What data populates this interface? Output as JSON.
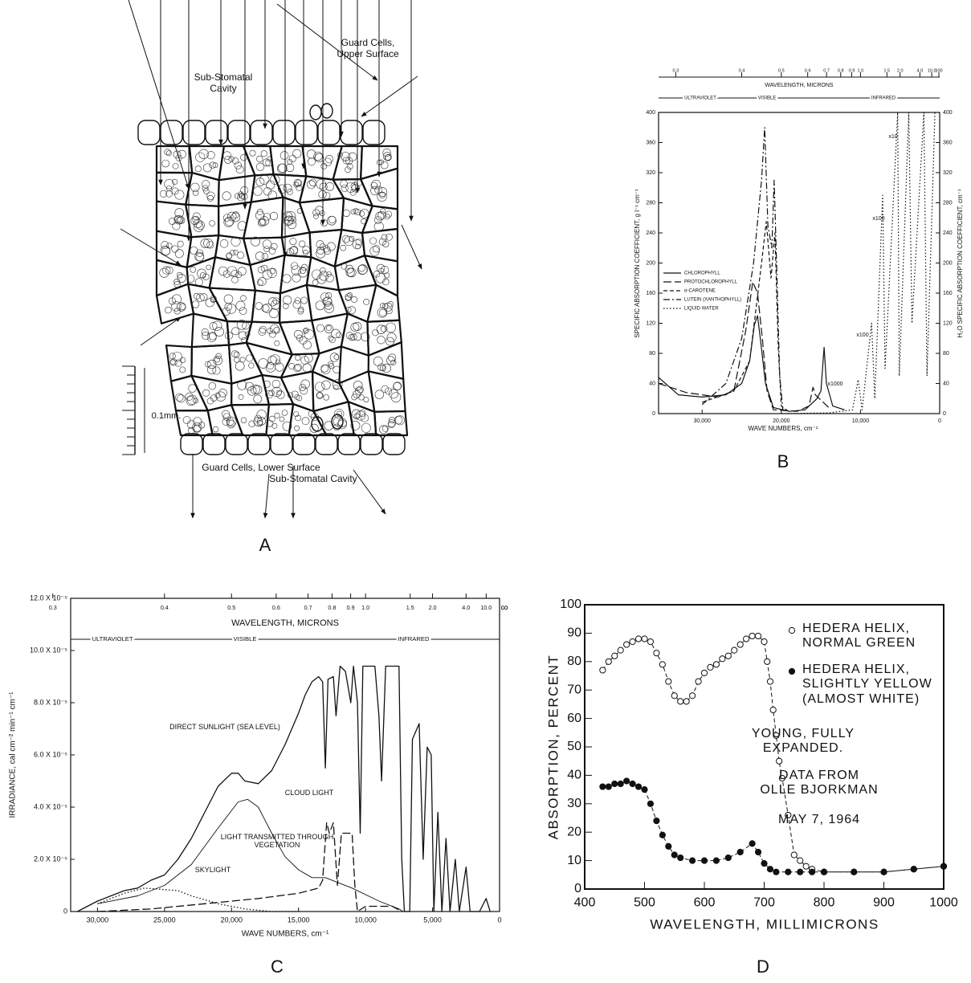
{
  "diagram": {
    "panel": "A",
    "labels": [
      "Sub-Stomatal Cavity",
      "Guard Cells, Upper Surface",
      "0.1mm.",
      "Guard Cells, Lower Surface",
      "Sub-Stomatal Cavity"
    ]
  },
  "chart_data": [
    {
      "type": "line",
      "panel": "B",
      "x_label": "WAVE NUMBERS, cm⁻¹",
      "y_label": "SPECIFIC ABSORPTION COEFFICIENT, g l⁻¹ cm⁻¹",
      "y2_label": "H₂O SPECIFIC ABSORPTION COEFFICIENT, cm⁻¹",
      "x2_label": "WAVELENGTH, MICRONS",
      "x2ticks": [
        0.3,
        0.4,
        0.5,
        0.6,
        0.7,
        0.8,
        0.9,
        {
          "value": 1,
          "label": "1.0"
        },
        1.5,
        {
          "value": 2,
          "label": "2.0"
        },
        {
          "value": 4,
          "label": "4.0"
        },
        {
          "value": 10,
          "label": "10.0"
        },
        100
      ],
      "regions": [
        "ULTRAVIOLET",
        "VISIBLE",
        "INFRARED"
      ],
      "xlim": [
        35500,
        0
      ],
      "xticks": [
        {
          "value": 30000,
          "label": "30,000"
        },
        {
          "value": 20000,
          "label": "20,000"
        },
        {
          "value": 10000,
          "label": "10,000"
        },
        0
      ],
      "ylim": [
        0,
        400
      ],
      "yticks": [
        0,
        40,
        80,
        120,
        160,
        200,
        240,
        280,
        320,
        360,
        400
      ],
      "y2lim": [
        0,
        400
      ],
      "y2ticks": [
        0,
        40,
        80,
        120,
        160,
        200,
        240,
        280,
        320,
        360,
        400
      ],
      "legend": "left",
      "series": [
        {
          "name": "CHLOROPHYLL",
          "color": "#111111",
          "dash": "solid",
          "x": [
            35500,
            33000,
            30000,
            27000,
            25000,
            24000,
            23400,
            23000,
            22600,
            22000,
            21000,
            19000,
            17000,
            15500,
            15000,
            14600,
            14300,
            13500,
            12000
          ],
          "values": [
            48,
            25,
            22,
            25,
            40,
            70,
            118,
            130,
            95,
            40,
            8,
            3,
            5,
            20,
            30,
            88,
            40,
            10,
            5
          ]
        },
        {
          "name": "PROTOCHLOROPHYLL",
          "color": "#111111",
          "dash": "longdash",
          "x": [
            35500,
            32000,
            28000,
            26000,
            24500,
            23600,
            23000,
            22400,
            21800,
            21000,
            18000,
            16500,
            16000,
            15700,
            14000
          ],
          "values": [
            40,
            28,
            22,
            30,
            110,
            175,
            160,
            100,
            30,
            5,
            3,
            10,
            35,
            25,
            8
          ]
        },
        {
          "name": "α-CAROTENE",
          "color": "#111111",
          "dash": "dashed",
          "x": [
            30000,
            26000,
            24000,
            22500,
            21900,
            21300,
            20800,
            20400,
            20000,
            19000
          ],
          "values": [
            15,
            30,
            70,
            200,
            255,
            180,
            240,
            90,
            10,
            2
          ]
        },
        {
          "name": "LUTEIN (XANTHOPHYLL)",
          "color": "#111111",
          "dash": "dashdot",
          "x": [
            30000,
            27000,
            25000,
            23500,
            22500,
            22100,
            21700,
            21200,
            20900,
            20600,
            20200,
            19800
          ],
          "values": [
            12,
            40,
            100,
            200,
            310,
            380,
            250,
            220,
            310,
            200,
            50,
            5
          ]
        },
        {
          "name": "LIQUID WATER",
          "color": "#111111",
          "dash": "dotted",
          "axis": "y2",
          "x": [
            20000,
            14000,
            11000,
            10300,
            9800,
            8600,
            8200,
            7200,
            6900,
            5300,
            5100,
            3900,
            3500,
            2000,
            1600,
            600
          ],
          "values": [
            0,
            1,
            5,
            45,
            5,
            120,
            20,
            290,
            60,
            400,
            50,
            400,
            120,
            400,
            50,
            400
          ]
        }
      ],
      "annotations": [
        "x10",
        "x100",
        "x100",
        "x1000"
      ]
    },
    {
      "type": "line",
      "panel": "C",
      "x_label": "WAVE NUMBERS, cm⁻¹",
      "y_label": "IRRADIANCE, cal cm⁻² min⁻¹ cm⁻¹",
      "x2_label": "WAVELENGTH, MICRONS",
      "x2ticks": [
        0.3,
        0.4,
        0.5,
        0.6,
        0.7,
        0.8,
        0.9,
        {
          "value": 1,
          "label": "1.0"
        },
        1.5,
        {
          "value": 2,
          "label": "2.0"
        },
        {
          "value": 4,
          "label": "4.0"
        },
        {
          "value": 10,
          "label": "10.0"
        }
      ],
      "x2_end": "∞",
      "regions": [
        "ULTRAVIOLET",
        "VISIBLE",
        "INFRARED"
      ],
      "xlim": [
        32000,
        0
      ],
      "xticks": [
        {
          "value": 30000,
          "label": "30,000"
        },
        {
          "value": 25000,
          "label": "25,000"
        },
        {
          "value": 20000,
          "label": "20,000"
        },
        {
          "value": 15000,
          "label": "15,000"
        },
        {
          "value": 10000,
          "label": "10,000"
        },
        {
          "value": 5000,
          "label": "5,000"
        },
        0
      ],
      "ylim": [
        0,
        0.00012
      ],
      "yticks": [
        0,
        {
          "value": 2e-05,
          "label": "2.0 X 10⁻⁵"
        },
        {
          "value": 4e-05,
          "label": "4.0 X 10⁻⁵"
        },
        {
          "value": 6e-05,
          "label": "6.0 X 10⁻⁵"
        },
        {
          "value": 8e-05,
          "label": "8.0 X 10⁻⁵"
        },
        {
          "value": 0.0001,
          "label": "10.0 X 10⁻⁵"
        },
        {
          "value": 0.00012,
          "label": "12.0 X 10⁻⁵"
        }
      ],
      "legend": "inline",
      "series": [
        {
          "name": "DIRECT SUNLIGHT (SEA LEVEL)",
          "color": "#111111",
          "dash": "solid",
          "x": [
            31500,
            30000,
            28000,
            27000,
            26000,
            25000,
            24000,
            23000,
            22000,
            21000,
            20000,
            19500,
            19000,
            18000,
            17000,
            16000,
            15000,
            14500,
            14000,
            13500,
            13200,
            13000,
            12800,
            12400,
            12200,
            11900,
            11500,
            11100,
            10900,
            10600,
            10400,
            10200,
            9300,
            9000,
            8800,
            8500,
            7500,
            7300,
            7100,
            6700,
            6500,
            6000,
            5700,
            5400,
            5100,
            4900,
            4600,
            4300,
            4000,
            3700,
            3300,
            3000,
            2500,
            2200,
            1500,
            1000,
            700
          ],
          "values": [
            0,
            4e-06,
            8e-06,
            9e-06,
            1.2e-05,
            1.4e-05,
            2e-05,
            2.8e-05,
            3.8e-05,
            4.8e-05,
            5.3e-05,
            5.3e-05,
            5e-05,
            4.9e-05,
            5.4e-05,
            6.4e-05,
            7.6e-05,
            8.3e-05,
            8.8e-05,
            9e-05,
            8.8e-05,
            5.5e-05,
            8.9e-05,
            9e-05,
            7.5e-05,
            9.4e-05,
            9.2e-05,
            8e-05,
            9.4e-05,
            8e-05,
            3e-05,
            9.4e-05,
            9.4e-05,
            7.5e-05,
            5e-05,
            9.4e-05,
            9.4e-05,
            2e-05,
            0,
            0,
            6.6e-05,
            7.2e-05,
            2e-05,
            6.3e-05,
            6e-05,
            0,
            3.8e-05,
            0,
            2.8e-05,
            0,
            2e-05,
            0,
            1.7e-05,
            0,
            0,
            5e-06,
            0
          ]
        },
        {
          "name": "CLOUD LIGHT",
          "color": "#111111",
          "dash": "thin",
          "x": [
            30000,
            27000,
            25000,
            23000,
            21000,
            19500,
            18800,
            18000,
            17000,
            16000,
            15000,
            14000,
            13000,
            11000,
            9000,
            7500,
            7200
          ],
          "values": [
            3e-06,
            6e-06,
            1e-05,
            1.8e-05,
            3.2e-05,
            4.2e-05,
            4.3e-05,
            4e-05,
            3e-05,
            2.1e-05,
            1.6e-05,
            1.3e-05,
            1.3e-05,
            9e-06,
            4e-06,
            1e-06,
            0
          ]
        },
        {
          "name": "LIGHT TRANSMITTED THROUGH VEGETATION",
          "color": "#111111",
          "dash": "longdash",
          "x": [
            30000,
            26000,
            22000,
            18000,
            15000,
            13500,
            13200,
            12900,
            12700,
            12400,
            12100,
            11800,
            11000,
            10800,
            10600,
            10000,
            8000,
            7300
          ],
          "values": [
            0,
            1e-06,
            3e-06,
            5e-06,
            7e-06,
            9e-06,
            1.2e-05,
            3.4e-05,
            3e-05,
            3.4e-05,
            1e-05,
            3e-05,
            3e-05,
            1e-05,
            0,
            2e-06,
            2e-06,
            0
          ]
        },
        {
          "name": "SKYLIGHT",
          "color": "#111111",
          "dash": "dotted",
          "x": [
            30000,
            28000,
            26500,
            24000,
            23000,
            21000,
            19000,
            17000,
            15000
          ],
          "values": [
            3e-06,
            7e-06,
            9e-06,
            8e-06,
            6e-06,
            3e-06,
            1e-06,
            0,
            0
          ]
        }
      ]
    },
    {
      "type": "line",
      "panel": "D",
      "x_label": "WAVELENGTH, MILLIMICRONS",
      "y_label": "ABSORPTION, PERCENT",
      "xlim": [
        400,
        1000
      ],
      "xticks": [
        400,
        500,
        600,
        700,
        800,
        900,
        1000
      ],
      "ylim": [
        0,
        100
      ],
      "yticks": [
        0,
        10,
        20,
        30,
        40,
        50,
        60,
        70,
        80,
        90,
        100
      ],
      "legend": "upper right",
      "series": [
        {
          "name": "HEDERA HELIX, NORMAL GREEN",
          "color": "#111111",
          "dash": "dashed",
          "marker": "open",
          "x": [
            430,
            440,
            450,
            460,
            470,
            480,
            490,
            500,
            510,
            520,
            530,
            540,
            550,
            560,
            570,
            580,
            590,
            600,
            610,
            620,
            630,
            640,
            650,
            660,
            670,
            680,
            690,
            700,
            705,
            710,
            715,
            720,
            725,
            730,
            740,
            750,
            760,
            770,
            780,
            800,
            850,
            900,
            950,
            1000
          ],
          "values": [
            77,
            80,
            82,
            84,
            86,
            87,
            88,
            88,
            87,
            83,
            79,
            73,
            68,
            66,
            66,
            68,
            73,
            76,
            78,
            79,
            81,
            82,
            84,
            86,
            88,
            89,
            89,
            87,
            80,
            73,
            63,
            54,
            45,
            39,
            26,
            12,
            10,
            8,
            7,
            6,
            6,
            6,
            7,
            8
          ]
        },
        {
          "name": "HEDERA HELIX, SLIGHTLY YELLOW (ALMOST WHITE)",
          "color": "#111111",
          "dash": "dashed",
          "marker": "filled",
          "x": [
            430,
            440,
            450,
            460,
            470,
            480,
            490,
            500,
            510,
            520,
            530,
            540,
            550,
            560,
            580,
            600,
            620,
            640,
            660,
            680,
            690,
            700,
            710,
            720,
            740,
            760,
            780,
            800,
            850,
            900,
            950,
            1000
          ],
          "values": [
            36,
            36,
            37,
            37,
            38,
            37,
            36,
            35,
            30,
            24,
            19,
            15,
            12,
            11,
            10,
            10,
            10,
            11,
            13,
            16,
            13,
            9,
            7,
            6,
            6,
            6,
            6,
            6,
            6,
            6,
            7,
            8
          ]
        }
      ],
      "annotations": [
        "YOUNG, FULLY EXPANDED.",
        "DATA FROM OLLE BJORKMAN",
        "MAY 7, 1964"
      ]
    }
  ]
}
